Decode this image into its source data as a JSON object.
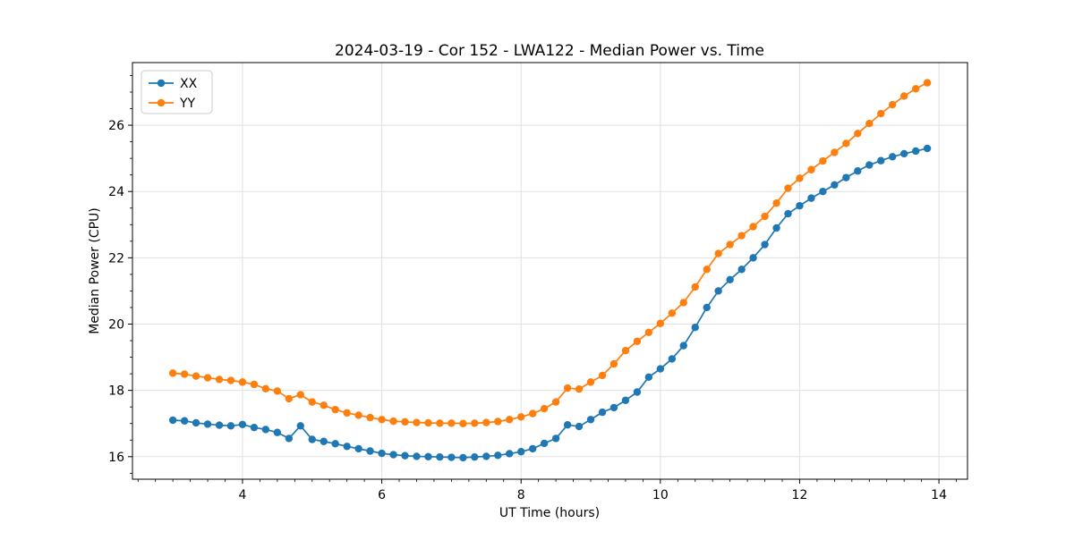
{
  "chart_data": {
    "type": "line",
    "title": "2024-03-19 - Cor 152 - LWA122 - Median Power vs. Time",
    "xlabel": "UT Time (hours)",
    "ylabel": "Median Power (CPU)",
    "xlim": [
      2.42,
      14.41
    ],
    "ylim": [
      15.32,
      27.89
    ],
    "x_ticks": [
      4,
      6,
      8,
      10,
      12,
      14
    ],
    "y_ticks": [
      16,
      18,
      20,
      22,
      24,
      26
    ],
    "x_minor_step": 0.25,
    "y_minor_step": 0.5,
    "grid": true,
    "legend_position": "upper left",
    "grid_color": "#e0e0e0",
    "spine_color": "#000000",
    "x": [
      3.0,
      3.167,
      3.333,
      3.5,
      3.667,
      3.833,
      4.0,
      4.167,
      4.333,
      4.5,
      4.667,
      4.833,
      5.0,
      5.167,
      5.333,
      5.5,
      5.667,
      5.833,
      6.0,
      6.167,
      6.333,
      6.5,
      6.667,
      6.833,
      7.0,
      7.167,
      7.333,
      7.5,
      7.667,
      7.833,
      8.0,
      8.167,
      8.333,
      8.5,
      8.667,
      8.833,
      9.0,
      9.167,
      9.333,
      9.5,
      9.667,
      9.833,
      10.0,
      10.167,
      10.333,
      10.5,
      10.667,
      10.833,
      11.0,
      11.167,
      11.333,
      11.5,
      11.667,
      11.833,
      12.0,
      12.167,
      12.333,
      12.5,
      12.667,
      12.833,
      13.0,
      13.167,
      13.333,
      13.5,
      13.667,
      13.833
    ],
    "series": [
      {
        "name": "XX",
        "color": "#1f77b4",
        "values": [
          17.1,
          17.08,
          17.02,
          16.98,
          16.95,
          16.93,
          16.97,
          16.88,
          16.82,
          16.73,
          16.55,
          16.93,
          16.52,
          16.46,
          16.39,
          16.31,
          16.24,
          16.17,
          16.1,
          16.06,
          16.03,
          16.01,
          16.0,
          15.99,
          15.98,
          15.97,
          15.99,
          16.01,
          16.04,
          16.09,
          16.15,
          16.24,
          16.4,
          16.55,
          16.96,
          16.91,
          17.12,
          17.34,
          17.48,
          17.7,
          17.95,
          18.4,
          18.65,
          18.95,
          19.35,
          19.9,
          20.5,
          21.0,
          21.34,
          21.65,
          22.0,
          22.4,
          22.9,
          23.33,
          23.57,
          23.8,
          24.0,
          24.2,
          24.42,
          24.62,
          24.8,
          24.93,
          25.05,
          25.14,
          25.22,
          25.3
        ]
      },
      {
        "name": "YY",
        "color": "#ff7f0e",
        "values": [
          18.52,
          18.49,
          18.43,
          18.38,
          18.33,
          18.3,
          18.25,
          18.18,
          18.05,
          17.98,
          17.75,
          17.87,
          17.65,
          17.55,
          17.42,
          17.32,
          17.25,
          17.18,
          17.12,
          17.07,
          17.05,
          17.03,
          17.02,
          17.01,
          17.01,
          17.0,
          17.01,
          17.03,
          17.06,
          17.12,
          17.2,
          17.3,
          17.45,
          17.65,
          18.07,
          18.04,
          18.25,
          18.45,
          18.8,
          19.2,
          19.48,
          19.75,
          20.02,
          20.33,
          20.65,
          21.12,
          21.65,
          22.13,
          22.4,
          22.67,
          22.94,
          23.25,
          23.65,
          24.1,
          24.4,
          24.66,
          24.92,
          25.18,
          25.45,
          25.75,
          26.05,
          26.35,
          26.62,
          26.88,
          27.1,
          27.28
        ]
      }
    ]
  }
}
